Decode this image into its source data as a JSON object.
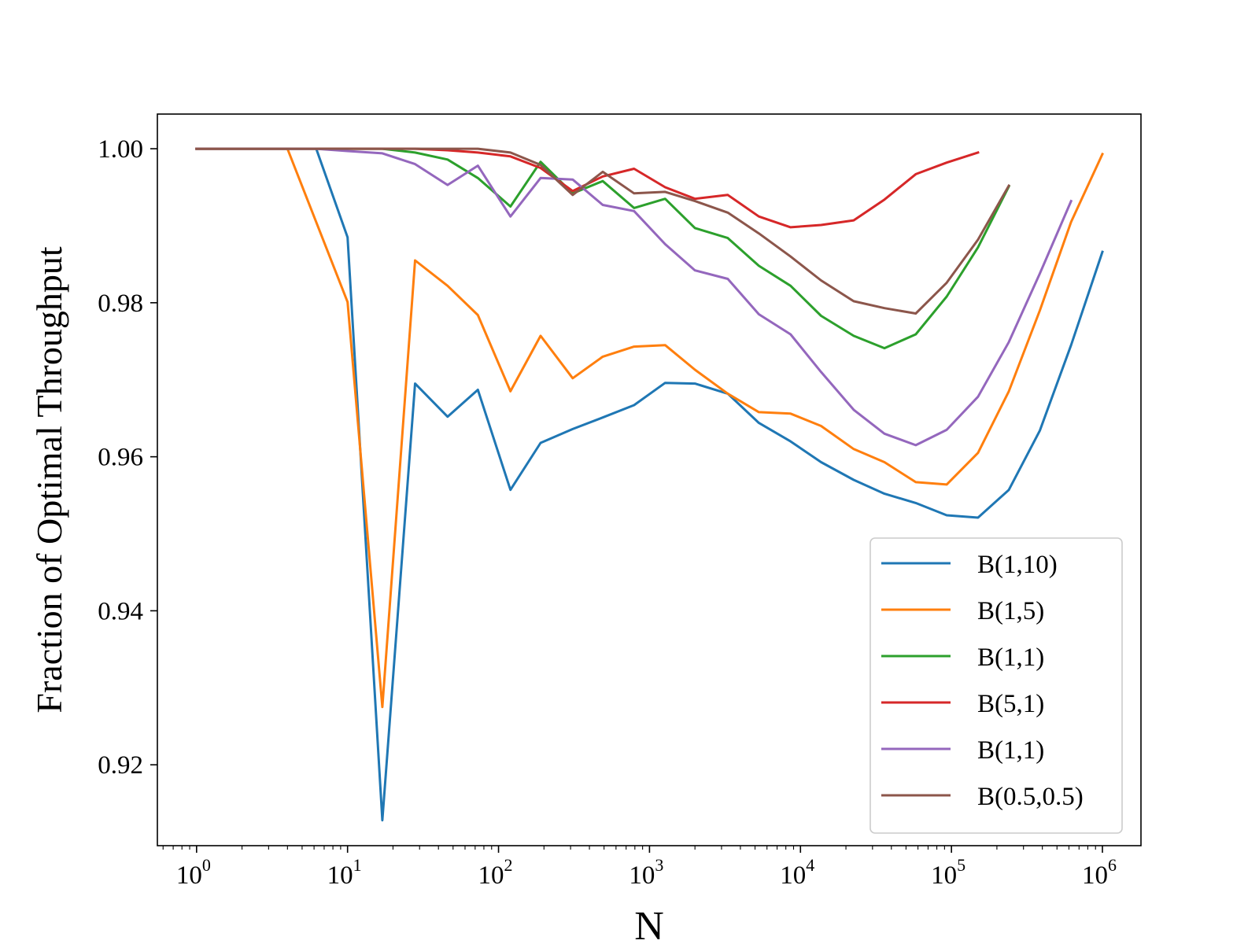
{
  "chart_data": {
    "type": "line",
    "xlabel": "N",
    "ylabel": "Fraction of Optimal Throughput",
    "xscale": "log",
    "xlim": [
      0.55,
      1800000.0
    ],
    "ylim": [
      0.9095,
      1.0045
    ],
    "xticks": [
      1,
      10,
      100,
      1000,
      10000,
      100000,
      1000000
    ],
    "xtick_labels": [
      {
        "base": "10",
        "exp": "0"
      },
      {
        "base": "10",
        "exp": "1"
      },
      {
        "base": "10",
        "exp": "2"
      },
      {
        "base": "10",
        "exp": "3"
      },
      {
        "base": "10",
        "exp": "4"
      },
      {
        "base": "10",
        "exp": "5"
      },
      {
        "base": "10",
        "exp": "6"
      }
    ],
    "yticks": [
      0.92,
      0.94,
      0.96,
      0.98,
      1.0
    ],
    "ytick_labels": [
      "0.92",
      "0.94",
      "0.96",
      "0.98",
      "1.00"
    ],
    "grid": false,
    "legend_position": "lower-right",
    "series": [
      {
        "name": "B(1,10)",
        "color": "#1f77b4",
        "points": [
          [
            1,
            1.0
          ],
          [
            1.6,
            1.0
          ],
          [
            2.5,
            1.0
          ],
          [
            4,
            1.0
          ],
          [
            6.2,
            1.0
          ],
          [
            10,
            0.9885
          ],
          [
            17,
            0.9128
          ],
          [
            28,
            0.9695
          ],
          [
            46,
            0.9652
          ],
          [
            73,
            0.9687
          ],
          [
            120,
            0.9557
          ],
          [
            190,
            0.9618
          ],
          [
            310,
            0.9636
          ],
          [
            490,
            0.9651
          ],
          [
            790,
            0.9667
          ],
          [
            1270,
            0.9696
          ],
          [
            2000,
            0.9695
          ],
          [
            3300,
            0.9682
          ],
          [
            5300,
            0.9644
          ],
          [
            8600,
            0.962
          ],
          [
            13700,
            0.9593
          ],
          [
            22500,
            0.957
          ],
          [
            36000,
            0.9552
          ],
          [
            58000,
            0.954
          ],
          [
            93000,
            0.9524
          ],
          [
            150000,
            0.9521
          ],
          [
            240000,
            0.9557
          ],
          [
            385000,
            0.9634
          ],
          [
            620000,
            0.9745
          ],
          [
            1000000,
            0.9866
          ]
        ]
      },
      {
        "name": "B(1,5)",
        "color": "#ff7f0e",
        "points": [
          [
            1,
            1.0
          ],
          [
            1.6,
            1.0
          ],
          [
            2.5,
            1.0
          ],
          [
            4,
            1.0
          ],
          [
            10,
            0.9801
          ],
          [
            17,
            0.9275
          ],
          [
            28,
            0.9855
          ],
          [
            46,
            0.9822
          ],
          [
            73,
            0.9784
          ],
          [
            120,
            0.9685
          ],
          [
            190,
            0.9757
          ],
          [
            310,
            0.9702
          ],
          [
            490,
            0.973
          ],
          [
            790,
            0.9743
          ],
          [
            1270,
            0.9745
          ],
          [
            2000,
            0.9713
          ],
          [
            3300,
            0.9682
          ],
          [
            5300,
            0.9658
          ],
          [
            8600,
            0.9656
          ],
          [
            13700,
            0.964
          ],
          [
            22500,
            0.961
          ],
          [
            36000,
            0.9593
          ],
          [
            58000,
            0.9567
          ],
          [
            93000,
            0.9564
          ],
          [
            150000,
            0.9605
          ],
          [
            240000,
            0.9685
          ],
          [
            385000,
            0.979
          ],
          [
            620000,
            0.9905
          ],
          [
            1000000,
            0.9993
          ]
        ]
      },
      {
        "name": "B(1,1)",
        "color": "#2ca02c",
        "points": [
          [
            1,
            1.0
          ],
          [
            1.6,
            1.0
          ],
          [
            2.5,
            1.0
          ],
          [
            4,
            1.0
          ],
          [
            6.2,
            1.0
          ],
          [
            10,
            1.0
          ],
          [
            17,
            1.0
          ],
          [
            28,
            0.9995
          ],
          [
            46,
            0.9986
          ],
          [
            73,
            0.9962
          ],
          [
            120,
            0.9925
          ],
          [
            190,
            0.9983
          ],
          [
            310,
            0.9942
          ],
          [
            490,
            0.9958
          ],
          [
            790,
            0.9923
          ],
          [
            1270,
            0.9935
          ],
          [
            2000,
            0.9897
          ],
          [
            3300,
            0.9884
          ],
          [
            5300,
            0.9848
          ],
          [
            8600,
            0.9822
          ],
          [
            13700,
            0.9783
          ],
          [
            22500,
            0.9757
          ],
          [
            36000,
            0.9741
          ],
          [
            58000,
            0.9759
          ],
          [
            93000,
            0.9808
          ],
          [
            150000,
            0.9872
          ],
          [
            240000,
            0.9951
          ]
        ]
      },
      {
        "name": "B(5,1)",
        "color": "#d62728",
        "points": [
          [
            1,
            1.0
          ],
          [
            1.6,
            1.0
          ],
          [
            2.5,
            1.0
          ],
          [
            4,
            1.0
          ],
          [
            6.2,
            1.0
          ],
          [
            10,
            1.0
          ],
          [
            17,
            1.0
          ],
          [
            28,
            1.0
          ],
          [
            46,
            0.9998
          ],
          [
            73,
            0.9995
          ],
          [
            120,
            0.999
          ],
          [
            190,
            0.9975
          ],
          [
            310,
            0.9945
          ],
          [
            490,
            0.9964
          ],
          [
            790,
            0.9974
          ],
          [
            1270,
            0.995
          ],
          [
            2000,
            0.9935
          ],
          [
            3300,
            0.994
          ],
          [
            5300,
            0.9912
          ],
          [
            8600,
            0.9898
          ],
          [
            13700,
            0.9901
          ],
          [
            22500,
            0.9907
          ],
          [
            36000,
            0.9934
          ],
          [
            58000,
            0.9967
          ],
          [
            93000,
            0.9982
          ],
          [
            150000,
            0.9995
          ]
        ]
      },
      {
        "name": "B(1,1)",
        "color": "#9467bd",
        "points": [
          [
            1,
            1.0
          ],
          [
            1.6,
            1.0
          ],
          [
            2.5,
            1.0
          ],
          [
            4,
            1.0
          ],
          [
            6.2,
            1.0
          ],
          [
            10,
            0.9997
          ],
          [
            17,
            0.9994
          ],
          [
            28,
            0.998
          ],
          [
            46,
            0.9953
          ],
          [
            73,
            0.9978
          ],
          [
            120,
            0.9912
          ],
          [
            190,
            0.9962
          ],
          [
            310,
            0.996
          ],
          [
            490,
            0.9927
          ],
          [
            790,
            0.9919
          ],
          [
            1270,
            0.9876
          ],
          [
            2000,
            0.9842
          ],
          [
            3300,
            0.9831
          ],
          [
            5300,
            0.9785
          ],
          [
            8600,
            0.9759
          ],
          [
            13700,
            0.971
          ],
          [
            22500,
            0.9661
          ],
          [
            36000,
            0.963
          ],
          [
            58000,
            0.9615
          ],
          [
            93000,
            0.9635
          ],
          [
            150000,
            0.9678
          ],
          [
            240000,
            0.9749
          ],
          [
            385000,
            0.9838
          ],
          [
            620000,
            0.9932
          ]
        ]
      },
      {
        "name": "B(0.5,0.5)",
        "color": "#8c564b",
        "points": [
          [
            1,
            1.0
          ],
          [
            1.6,
            1.0
          ],
          [
            2.5,
            1.0
          ],
          [
            4,
            1.0
          ],
          [
            6.2,
            1.0
          ],
          [
            10,
            1.0
          ],
          [
            17,
            1.0
          ],
          [
            28,
            1.0
          ],
          [
            46,
            1.0
          ],
          [
            73,
            1.0
          ],
          [
            120,
            0.9995
          ],
          [
            190,
            0.9979
          ],
          [
            310,
            0.994
          ],
          [
            490,
            0.997
          ],
          [
            790,
            0.9942
          ],
          [
            1270,
            0.9944
          ],
          [
            2000,
            0.9932
          ],
          [
            3300,
            0.9917
          ],
          [
            5300,
            0.989
          ],
          [
            8600,
            0.986
          ],
          [
            13700,
            0.9829
          ],
          [
            22500,
            0.9802
          ],
          [
            36000,
            0.9793
          ],
          [
            58000,
            0.9786
          ],
          [
            93000,
            0.9826
          ],
          [
            150000,
            0.9882
          ],
          [
            240000,
            0.9952
          ]
        ]
      }
    ]
  }
}
